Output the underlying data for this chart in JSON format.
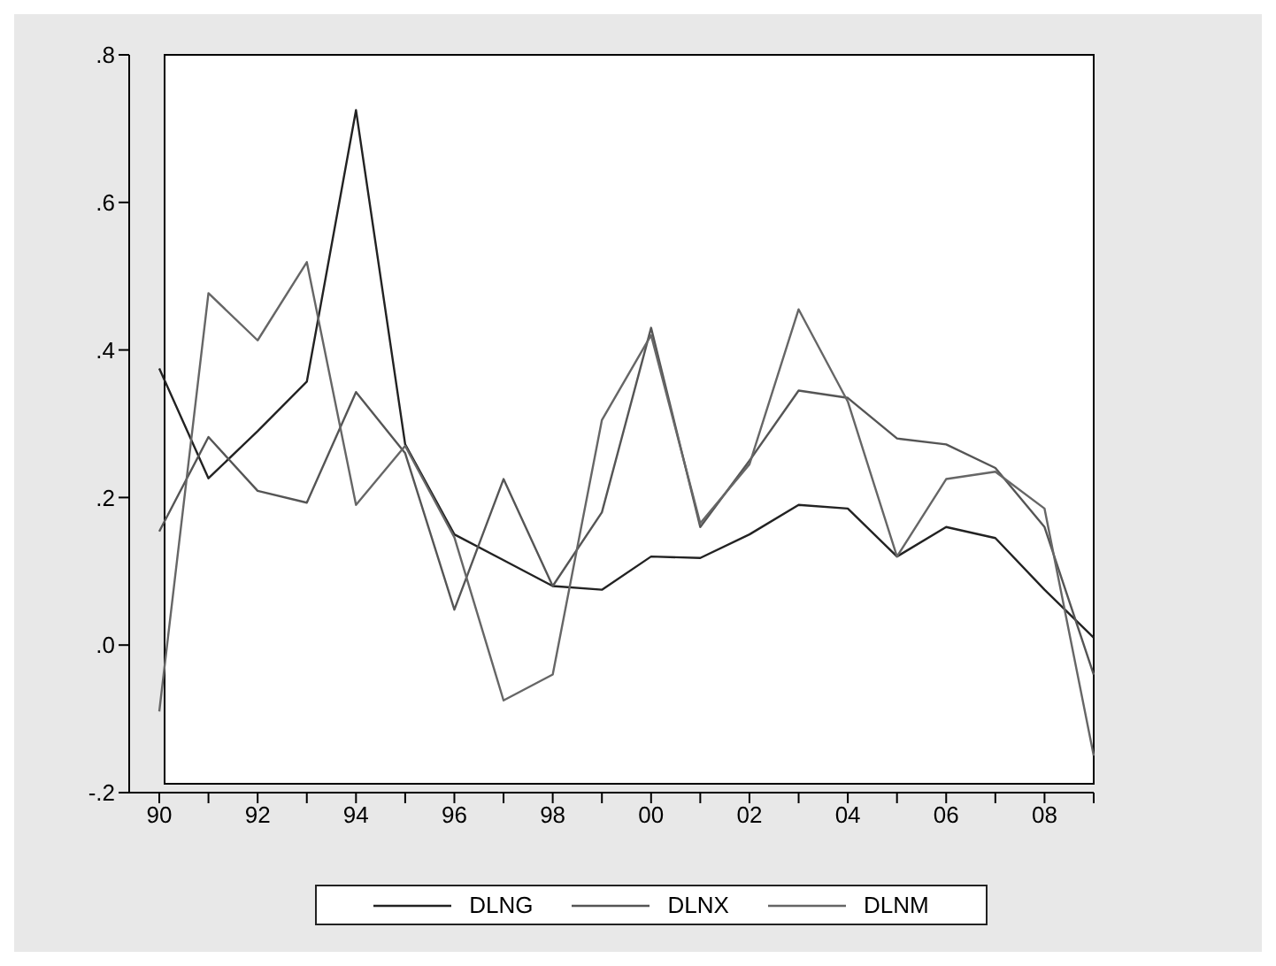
{
  "chart_data": {
    "type": "line",
    "categories": [
      "90",
      null,
      "92",
      null,
      "94",
      null,
      "96",
      null,
      "98",
      null,
      "00",
      null,
      "02",
      null,
      "04",
      null,
      "06",
      null,
      "08",
      null
    ],
    "ylim": [
      -0.2,
      0.8
    ],
    "yticks": [
      {
        "value": -0.2,
        "label": "-.2"
      },
      {
        "value": 0,
        "label": ".0"
      },
      {
        "value": 0.2,
        "label": ".2"
      },
      {
        "value": 0.4,
        "label": ".4"
      },
      {
        "value": 0.6,
        "label": ".6"
      },
      {
        "value": 0.8,
        "label": ".8"
      }
    ],
    "grid": false,
    "legend": "bottom",
    "marker": "none",
    "line_style": "solid",
    "series": [
      {
        "name": "DLNG",
        "color": "#222222",
        "values": [
          0.375,
          0.226,
          0.29,
          0.357,
          0.725,
          0.272,
          0.15,
          0.115,
          0.08,
          0.075,
          0.12,
          0.118,
          0.15,
          0.19,
          0.185,
          0.12,
          0.16,
          0.145,
          0.075,
          0.01
        ]
      },
      {
        "name": "DLNX",
        "color": "#555555",
        "values": [
          0.154,
          0.282,
          0.209,
          0.193,
          0.343,
          0.26,
          0.048,
          0.225,
          0.08,
          0.18,
          0.43,
          0.16,
          0.25,
          0.345,
          0.335,
          0.28,
          0.272,
          0.24,
          0.16,
          -0.04
        ]
      },
      {
        "name": "DLNM",
        "color": "#666666",
        "values": [
          -0.09,
          0.477,
          0.413,
          0.519,
          0.19,
          0.27,
          0.146,
          -0.075,
          -0.04,
          0.305,
          0.42,
          0.165,
          0.245,
          0.455,
          0.33,
          0.12,
          0.225,
          0.235,
          0.185,
          -0.15
        ]
      }
    ]
  }
}
